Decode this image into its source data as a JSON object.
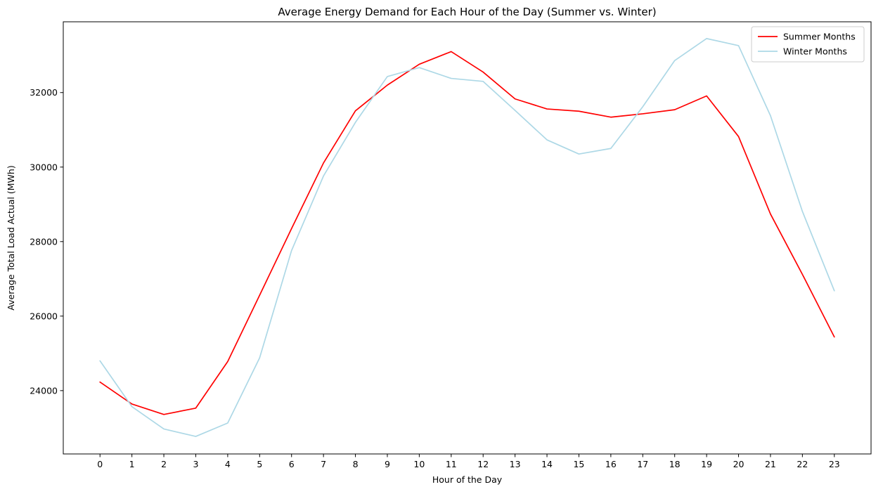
{
  "chart_data": {
    "type": "line",
    "title": "Average Energy Demand for Each Hour of the Day (Summer vs. Winter)",
    "xlabel": "Hour of the Day",
    "ylabel": "Average Total Load Actual (MWh)",
    "x": [
      0,
      1,
      2,
      3,
      4,
      5,
      6,
      7,
      8,
      9,
      10,
      11,
      12,
      13,
      14,
      15,
      16,
      17,
      18,
      19,
      20,
      21,
      22,
      23
    ],
    "x_tick_labels": [
      "0",
      "1",
      "2",
      "3",
      "4",
      "5",
      "6",
      "7",
      "8",
      "9",
      "10",
      "11",
      "12",
      "13",
      "14",
      "15",
      "16",
      "17",
      "18",
      "19",
      "20",
      "21",
      "22",
      "23"
    ],
    "y_ticks": [
      24000,
      26000,
      28000,
      30000,
      32000
    ],
    "xlim": [
      -1.15,
      24.15
    ],
    "ylim": [
      22300,
      33900
    ],
    "grid": false,
    "legend_position": "upper right",
    "series": [
      {
        "name": "Summer Months",
        "color": "#ff0000",
        "values": [
          24230,
          23640,
          23360,
          23530,
          24780,
          26560,
          28350,
          30110,
          31510,
          32200,
          32760,
          33100,
          32550,
          31830,
          31560,
          31500,
          31340,
          31430,
          31540,
          31910,
          30820,
          28740,
          27120,
          25440
        ]
      },
      {
        "name": "Winter Months",
        "color": "#add8e6",
        "values": [
          24800,
          23570,
          22970,
          22770,
          23130,
          24880,
          27760,
          29760,
          31200,
          32430,
          32670,
          32380,
          32300,
          31520,
          30730,
          30350,
          30500,
          31620,
          32860,
          33450,
          33260,
          31380,
          28810,
          26680
        ]
      }
    ]
  }
}
